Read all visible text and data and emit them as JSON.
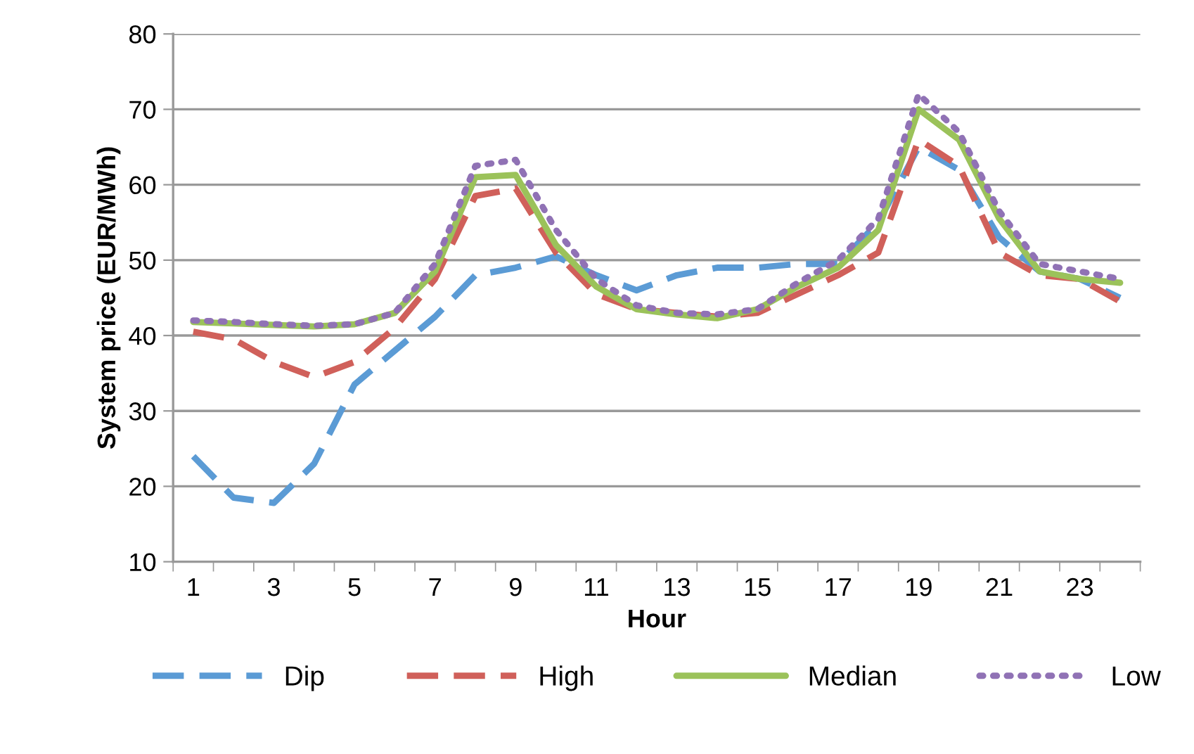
{
  "chart_data": {
    "type": "line",
    "xlabel": "Hour",
    "ylabel": "System price (EUR/MWh)",
    "categories": [
      "1",
      null,
      "3",
      null,
      "5",
      null,
      "7",
      null,
      "9",
      null,
      "11",
      null,
      "13",
      null,
      "15",
      null,
      "17",
      null,
      "19",
      null,
      "21",
      null,
      "23",
      null
    ],
    "ylim": [
      10,
      80
    ],
    "yticks": [
      10,
      20,
      30,
      40,
      50,
      60,
      70,
      80
    ],
    "grid": "y",
    "legend": "bottom",
    "marker": "none",
    "series": [
      {
        "name": "Dip",
        "color": "#5b9bd5",
        "line_style": "dashed",
        "values": [
          24,
          18.5,
          17.8,
          23,
          33.5,
          38,
          42.5,
          48,
          49,
          50.5,
          48,
          46,
          48,
          49,
          49,
          49.5,
          49.5,
          55,
          65,
          62,
          53,
          48.5,
          47.5,
          45
        ]
      },
      {
        "name": "High",
        "color": "#d0605a",
        "line_style": "dashed",
        "values": [
          40.5,
          39.5,
          36.5,
          34.5,
          36.5,
          41,
          47.5,
          58.5,
          59.5,
          51,
          45.5,
          43.5,
          43,
          42.5,
          43,
          45.5,
          48,
          51,
          66,
          62.5,
          51,
          48,
          47.5,
          44.5
        ]
      },
      {
        "name": "Median",
        "color": "#9bc25a",
        "line_style": "solid",
        "values": [
          41.8,
          41.6,
          41.4,
          41.2,
          41.5,
          43,
          48.5,
          61,
          61.3,
          52,
          46.5,
          43.5,
          42.8,
          42.3,
          43.5,
          46.5,
          49,
          54,
          70,
          66,
          55.5,
          48.5,
          47.5,
          47
        ]
      },
      {
        "name": "Low",
        "color": "#9072b5",
        "line_style": "dotted",
        "values": [
          42,
          41.8,
          41.5,
          41.3,
          41.5,
          43,
          49.5,
          62.5,
          63.3,
          54,
          47.5,
          44,
          43,
          42.8,
          43.5,
          47,
          50,
          55.5,
          72,
          67,
          56.5,
          49.5,
          48.5,
          47.5
        ]
      }
    ]
  }
}
